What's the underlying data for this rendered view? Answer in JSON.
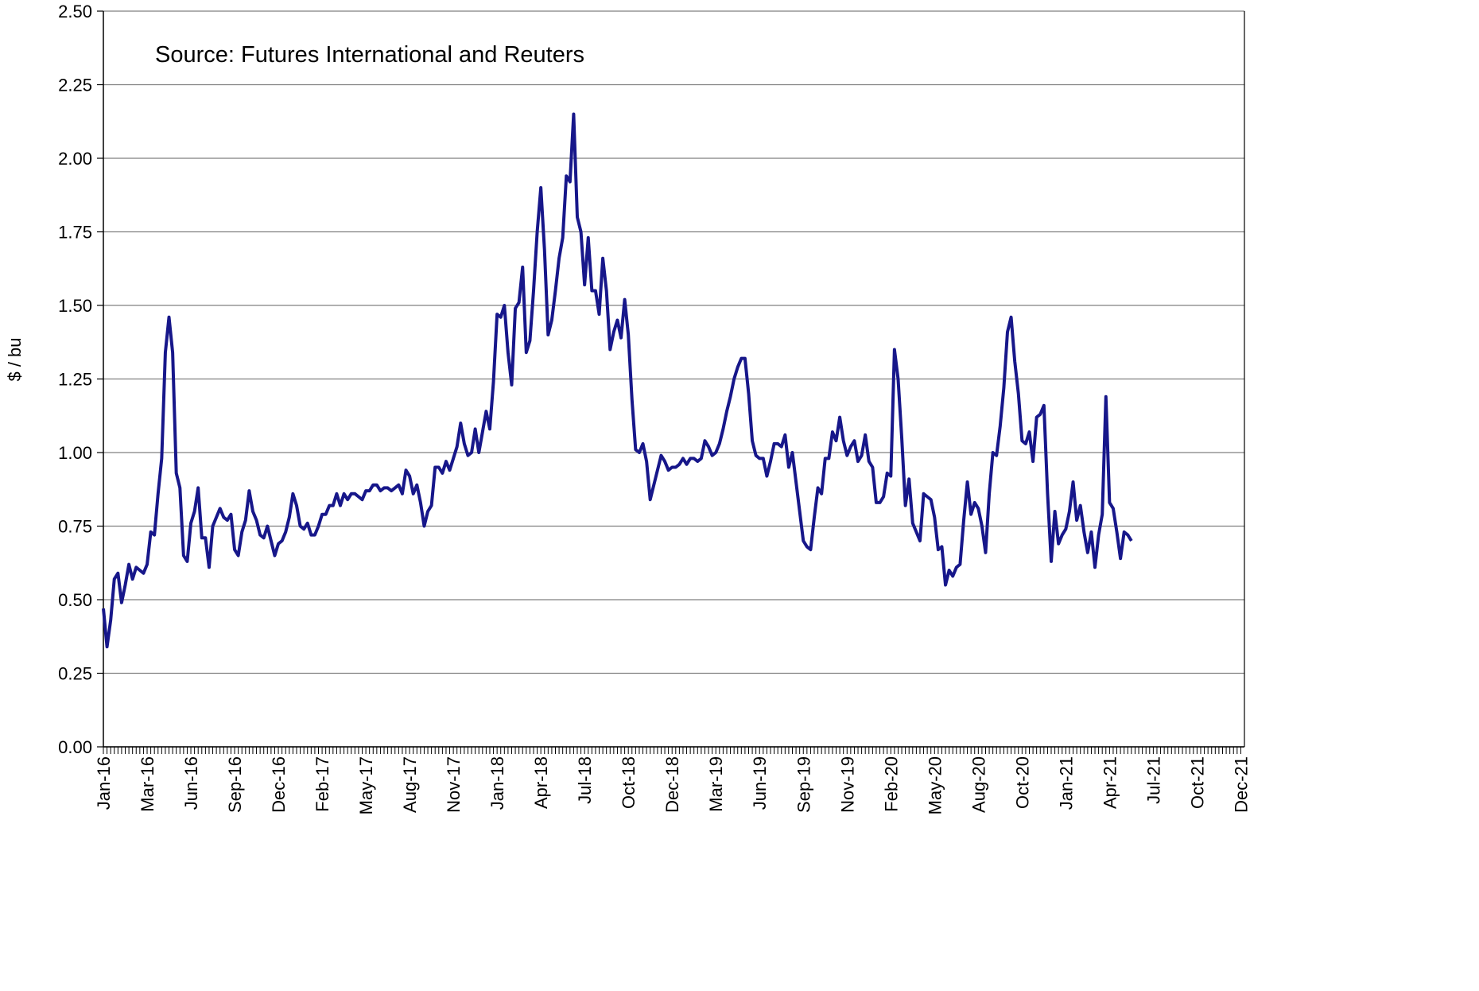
{
  "chart_data": {
    "type": "line",
    "annotation": "Source: Futures International and Reuters",
    "y_label": "$ / bu",
    "color": "#17178a",
    "grid": true,
    "ylim": [
      0,
      2.5
    ],
    "yticks": [
      {
        "value": 0,
        "label": "0.00"
      },
      {
        "value": 0.25,
        "label": "0.25"
      },
      {
        "value": 0.5,
        "label": "0.50"
      },
      {
        "value": 0.75,
        "label": "0.75"
      },
      {
        "value": 1,
        "label": "1.00"
      },
      {
        "value": 1.25,
        "label": "1.25"
      },
      {
        "value": 1.5,
        "label": "1.50"
      },
      {
        "value": 1.75,
        "label": "1.75"
      },
      {
        "value": 2,
        "label": "2.00"
      },
      {
        "value": 2.25,
        "label": "2.25"
      },
      {
        "value": 2.5,
        "label": "2.50"
      }
    ],
    "categories": [
      "Jan-16",
      null,
      null,
      null,
      null,
      null,
      null,
      null,
      null,
      null,
      null,
      null,
      "Mar-16",
      null,
      null,
      null,
      null,
      null,
      null,
      null,
      null,
      null,
      null,
      null,
      "Jun-16",
      null,
      null,
      null,
      null,
      null,
      null,
      null,
      null,
      null,
      null,
      null,
      "Sep-16",
      null,
      null,
      null,
      null,
      null,
      null,
      null,
      null,
      null,
      null,
      null,
      "Dec-16",
      null,
      null,
      null,
      null,
      null,
      null,
      null,
      null,
      null,
      null,
      null,
      "Feb-17",
      null,
      null,
      null,
      null,
      null,
      null,
      null,
      null,
      null,
      null,
      null,
      "May-17",
      null,
      null,
      null,
      null,
      null,
      null,
      null,
      null,
      null,
      null,
      null,
      "Aug-17",
      null,
      null,
      null,
      null,
      null,
      null,
      null,
      null,
      null,
      null,
      null,
      "Nov-17",
      null,
      null,
      null,
      null,
      null,
      null,
      null,
      null,
      null,
      null,
      null,
      "Jan-18",
      null,
      null,
      null,
      null,
      null,
      null,
      null,
      null,
      null,
      null,
      null,
      "Apr-18",
      null,
      null,
      null,
      null,
      null,
      null,
      null,
      null,
      null,
      null,
      null,
      "Jul-18",
      null,
      null,
      null,
      null,
      null,
      null,
      null,
      null,
      null,
      null,
      null,
      "Oct-18",
      null,
      null,
      null,
      null,
      null,
      null,
      null,
      null,
      null,
      null,
      null,
      "Dec-18",
      null,
      null,
      null,
      null,
      null,
      null,
      null,
      null,
      null,
      null,
      null,
      "Mar-19",
      null,
      null,
      null,
      null,
      null,
      null,
      null,
      null,
      null,
      null,
      null,
      "Jun-19",
      null,
      null,
      null,
      null,
      null,
      null,
      null,
      null,
      null,
      null,
      null,
      "Sep-19",
      null,
      null,
      null,
      null,
      null,
      null,
      null,
      null,
      null,
      null,
      null,
      "Nov-19",
      null,
      null,
      null,
      null,
      null,
      null,
      null,
      null,
      null,
      null,
      null,
      "Feb-20",
      null,
      null,
      null,
      null,
      null,
      null,
      null,
      null,
      null,
      null,
      null,
      "May-20",
      null,
      null,
      null,
      null,
      null,
      null,
      null,
      null,
      null,
      null,
      null,
      "Aug-20",
      null,
      null,
      null,
      null,
      null,
      null,
      null,
      null,
      null,
      null,
      null,
      "Oct-20",
      null,
      null,
      null,
      null,
      null,
      null,
      null,
      null,
      null,
      null,
      null,
      "Jan-21",
      null,
      null,
      null,
      null,
      null,
      null,
      null,
      null,
      null,
      null,
      null,
      "Apr-21",
      null,
      null,
      null,
      null,
      null,
      null,
      null,
      null,
      null,
      null,
      null,
      "Jul-21",
      null,
      null,
      null,
      null,
      null,
      null,
      null,
      null,
      null,
      null,
      null,
      "Oct-21",
      null,
      null,
      null,
      null,
      null,
      null,
      null,
      null,
      null,
      null,
      null,
      "Dec-21"
    ],
    "values": [
      0.47,
      0.34,
      0.43,
      0.57,
      0.59,
      0.49,
      0.55,
      0.62,
      0.57,
      0.61,
      0.6,
      0.59,
      0.62,
      0.73,
      0.72,
      0.86,
      0.98,
      1.34,
      1.46,
      1.34,
      0.93,
      0.88,
      0.65,
      0.63,
      0.76,
      0.8,
      0.88,
      0.71,
      0.71,
      0.61,
      0.75,
      0.78,
      0.81,
      0.78,
      0.77,
      0.79,
      0.67,
      0.65,
      0.73,
      0.77,
      0.87,
      0.8,
      0.77,
      0.72,
      0.71,
      0.75,
      0.7,
      0.65,
      0.69,
      0.7,
      0.73,
      0.78,
      0.86,
      0.82,
      0.75,
      0.74,
      0.76,
      0.72,
      0.72,
      0.75,
      0.79,
      0.79,
      0.82,
      0.82,
      0.86,
      0.82,
      0.86,
      0.84,
      0.86,
      0.86,
      0.85,
      0.84,
      0.87,
      0.87,
      0.89,
      0.89,
      0.87,
      0.88,
      0.88,
      0.87,
      0.88,
      0.89,
      0.86,
      0.94,
      0.92,
      0.86,
      0.89,
      0.83,
      0.75,
      0.8,
      0.82,
      0.95,
      0.95,
      0.93,
      0.97,
      0.94,
      0.98,
      1.02,
      1.1,
      1.03,
      0.99,
      1.0,
      1.08,
      1.0,
      1.07,
      1.14,
      1.08,
      1.24,
      1.47,
      1.46,
      1.5,
      1.34,
      1.23,
      1.49,
      1.51,
      1.63,
      1.34,
      1.38,
      1.55,
      1.75,
      1.9,
      1.69,
      1.4,
      1.45,
      1.55,
      1.66,
      1.73,
      1.94,
      1.92,
      2.15,
      1.8,
      1.75,
      1.57,
      1.73,
      1.55,
      1.55,
      1.47,
      1.66,
      1.55,
      1.35,
      1.41,
      1.45,
      1.39,
      1.52,
      1.4,
      1.18,
      1.01,
      1.0,
      1.03,
      0.97,
      0.84,
      0.89,
      0.94,
      0.99,
      0.97,
      0.94,
      0.95,
      0.95,
      0.96,
      0.98,
      0.96,
      0.98,
      0.98,
      0.97,
      0.98,
      1.04,
      1.02,
      0.99,
      1.0,
      1.03,
      1.08,
      1.14,
      1.19,
      1.25,
      1.29,
      1.32,
      1.32,
      1.2,
      1.04,
      0.99,
      0.98,
      0.98,
      0.92,
      0.97,
      1.03,
      1.03,
      1.02,
      1.06,
      0.95,
      1.0,
      0.9,
      0.8,
      0.7,
      0.68,
      0.67,
      0.78,
      0.88,
      0.86,
      0.98,
      0.98,
      1.07,
      1.04,
      1.12,
      1.04,
      0.99,
      1.02,
      1.04,
      0.97,
      0.99,
      1.06,
      0.97,
      0.95,
      0.83,
      0.83,
      0.85,
      0.93,
      0.92,
      1.35,
      1.25,
      1.05,
      0.82,
      0.91,
      0.76,
      0.73,
      0.7,
      0.86,
      0.85,
      0.84,
      0.78,
      0.67,
      0.68,
      0.55,
      0.6,
      0.58,
      0.61,
      0.62,
      0.77,
      0.9,
      0.79,
      0.83,
      0.81,
      0.75,
      0.66,
      0.86,
      1.0,
      0.99,
      1.09,
      1.22,
      1.41,
      1.46,
      1.31,
      1.2,
      1.04,
      1.03,
      1.07,
      0.97,
      1.12,
      1.13,
      1.16,
      0.86,
      0.63,
      0.8,
      0.69,
      0.72,
      0.74,
      0.8,
      0.9,
      0.77,
      0.82,
      0.73,
      0.66,
      0.73,
      0.61,
      0.72,
      0.79,
      1.19,
      0.83,
      0.81,
      0.73,
      0.64,
      0.73,
      0.72,
      0.7,
      null,
      null,
      null,
      null,
      null,
      null,
      null,
      null,
      null,
      null,
      null,
      null,
      null,
      null,
      null,
      null,
      null,
      null,
      null,
      null,
      null,
      null,
      null,
      null,
      null,
      null,
      null,
      null,
      null,
      null
    ]
  }
}
